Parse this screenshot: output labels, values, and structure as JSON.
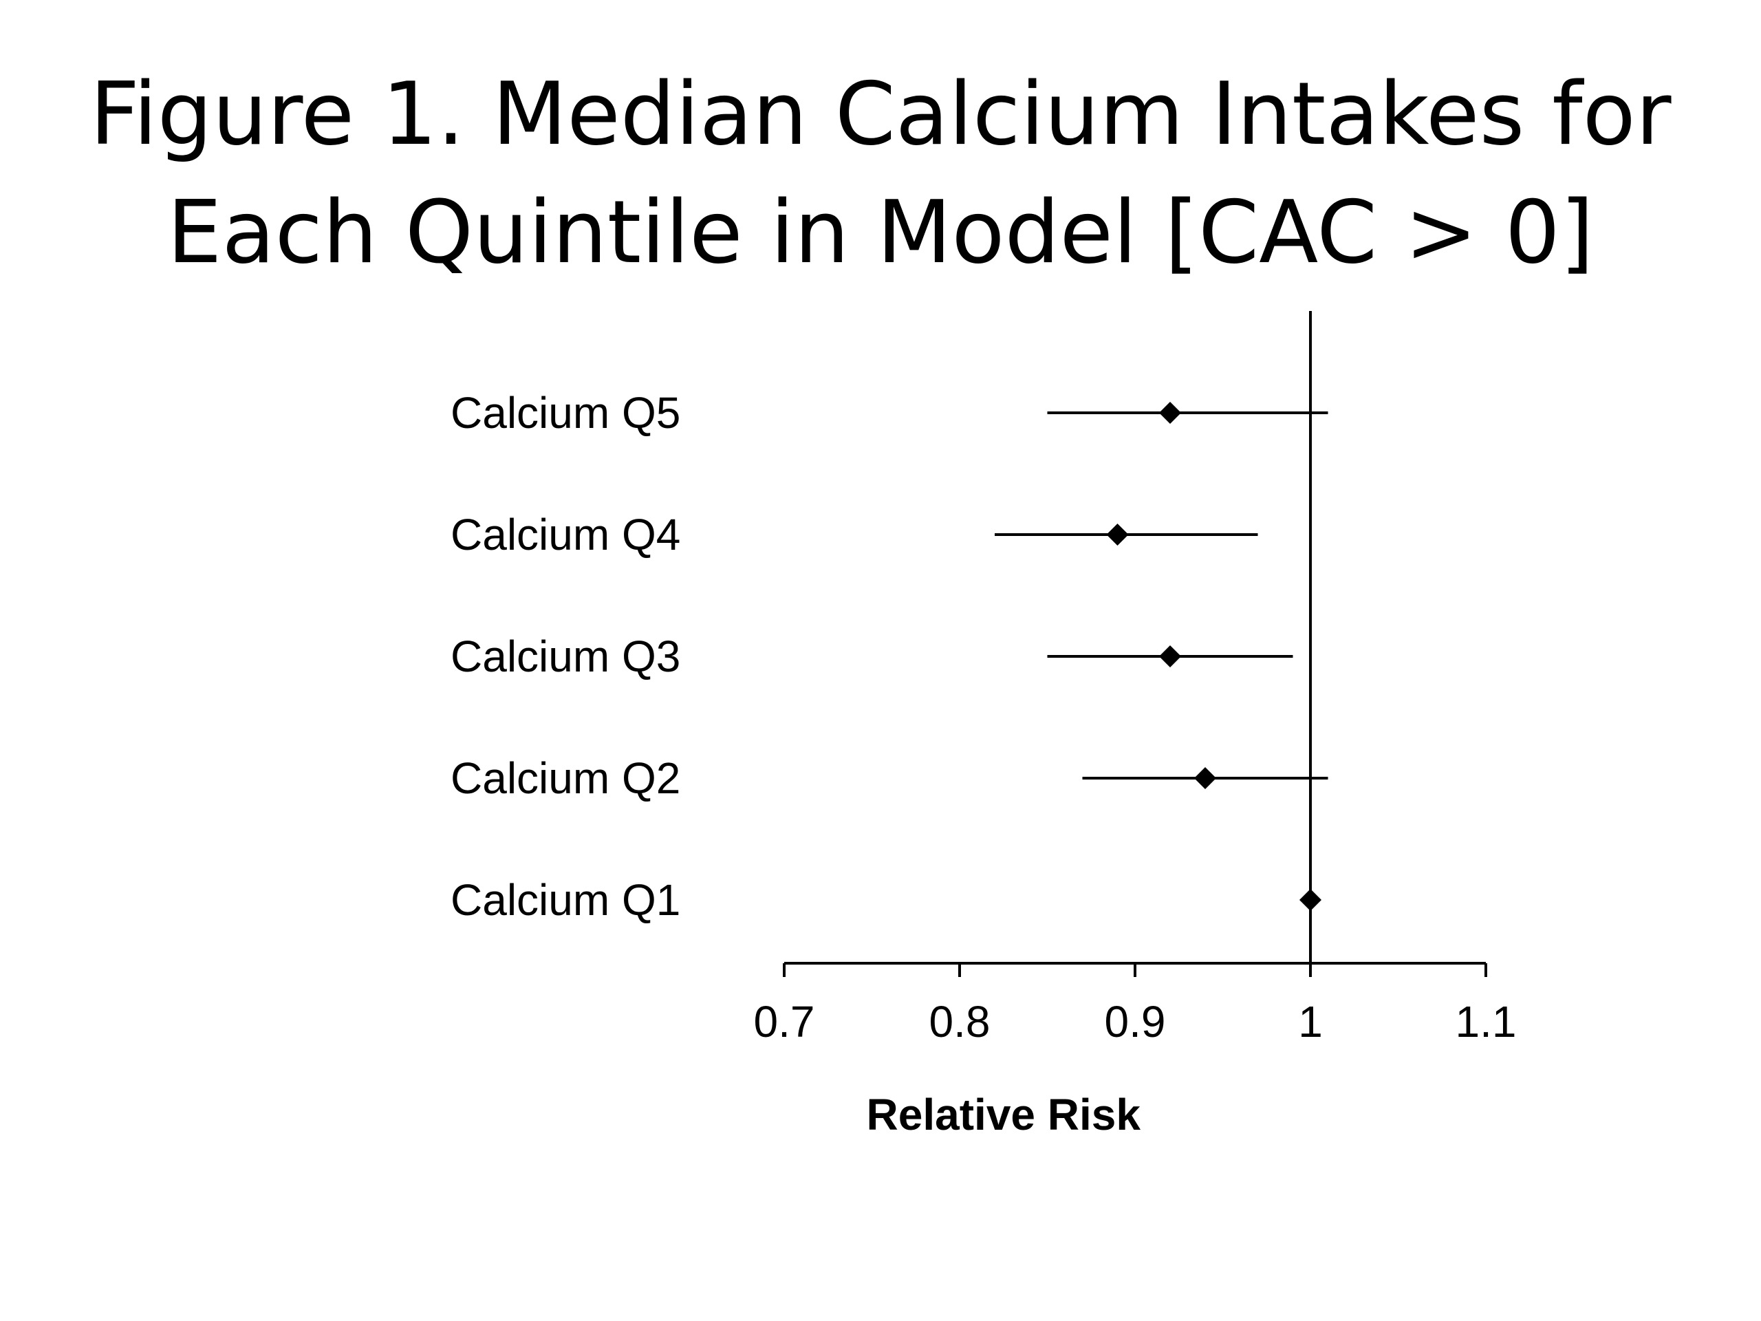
{
  "title_lines": [
    "Figure 1.  Median Calcium Intakes for",
    "Each Quintile in Model [CAC > 0]"
  ],
  "chart_data": {
    "type": "forest",
    "title": "Figure 1.  Median Calcium Intakes for Each Quintile in Model [CAC > 0]",
    "xlabel": "Relative Risk",
    "ylabel": "",
    "xlim": [
      0.7,
      1.1
    ],
    "xticks": [
      0.7,
      0.8,
      0.9,
      1.0,
      1.1
    ],
    "xtick_labels": [
      "0.7",
      "0.8",
      "0.9",
      "1",
      "1.1"
    ],
    "reference_line": 1.0,
    "grid": false,
    "categories": [
      "Calcium Q5",
      "Calcium Q4",
      "Calcium Q3",
      "Calcium Q2",
      "Calcium Q1"
    ],
    "estimates": [
      0.92,
      0.89,
      0.92,
      0.94,
      1.0
    ],
    "lower": [
      0.85,
      0.82,
      0.85,
      0.87,
      1.0
    ],
    "upper": [
      1.01,
      0.97,
      0.99,
      1.01,
      1.0
    ]
  }
}
